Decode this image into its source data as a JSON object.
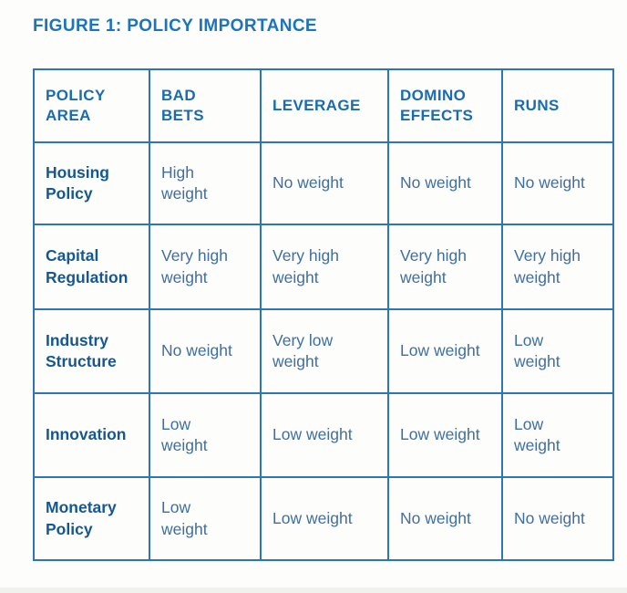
{
  "figure": {
    "title": "FIGURE 1: POLICY IMPORTANCE"
  },
  "table": {
    "headers": [
      "POLICY\nAREA",
      "BAD\nBETS",
      "LEVERAGE",
      "DOMINO\nEFFECTS",
      "RUNS"
    ],
    "rows": [
      {
        "label": "Housing\nPolicy",
        "cells": [
          "High\nweight",
          "No weight",
          "No weight",
          "No weight"
        ]
      },
      {
        "label": "Capital\nRegulation",
        "cells": [
          "Very high\nweight",
          "Very high\nweight",
          "Very high\nweight",
          "Very high\nweight"
        ]
      },
      {
        "label": "Industry\nStructure",
        "cells": [
          "No weight",
          "Very low\nweight",
          "Low weight",
          "Low\nweight"
        ]
      },
      {
        "label": "Innovation",
        "cells": [
          "Low\nweight",
          "Low weight",
          "Low weight",
          "Low\nweight"
        ]
      },
      {
        "label": "Monetary\nPolicy",
        "cells": [
          "Low\nweight",
          "Low weight",
          "No weight",
          "No weight"
        ]
      }
    ]
  },
  "colors": {
    "title_text": "#1b74bc",
    "header_text": "#1a6cae",
    "row_label_text": "#15588f",
    "cell_text": "#3f6fa0",
    "table_border": "#2e75b6",
    "background": "#fdfdfc"
  }
}
